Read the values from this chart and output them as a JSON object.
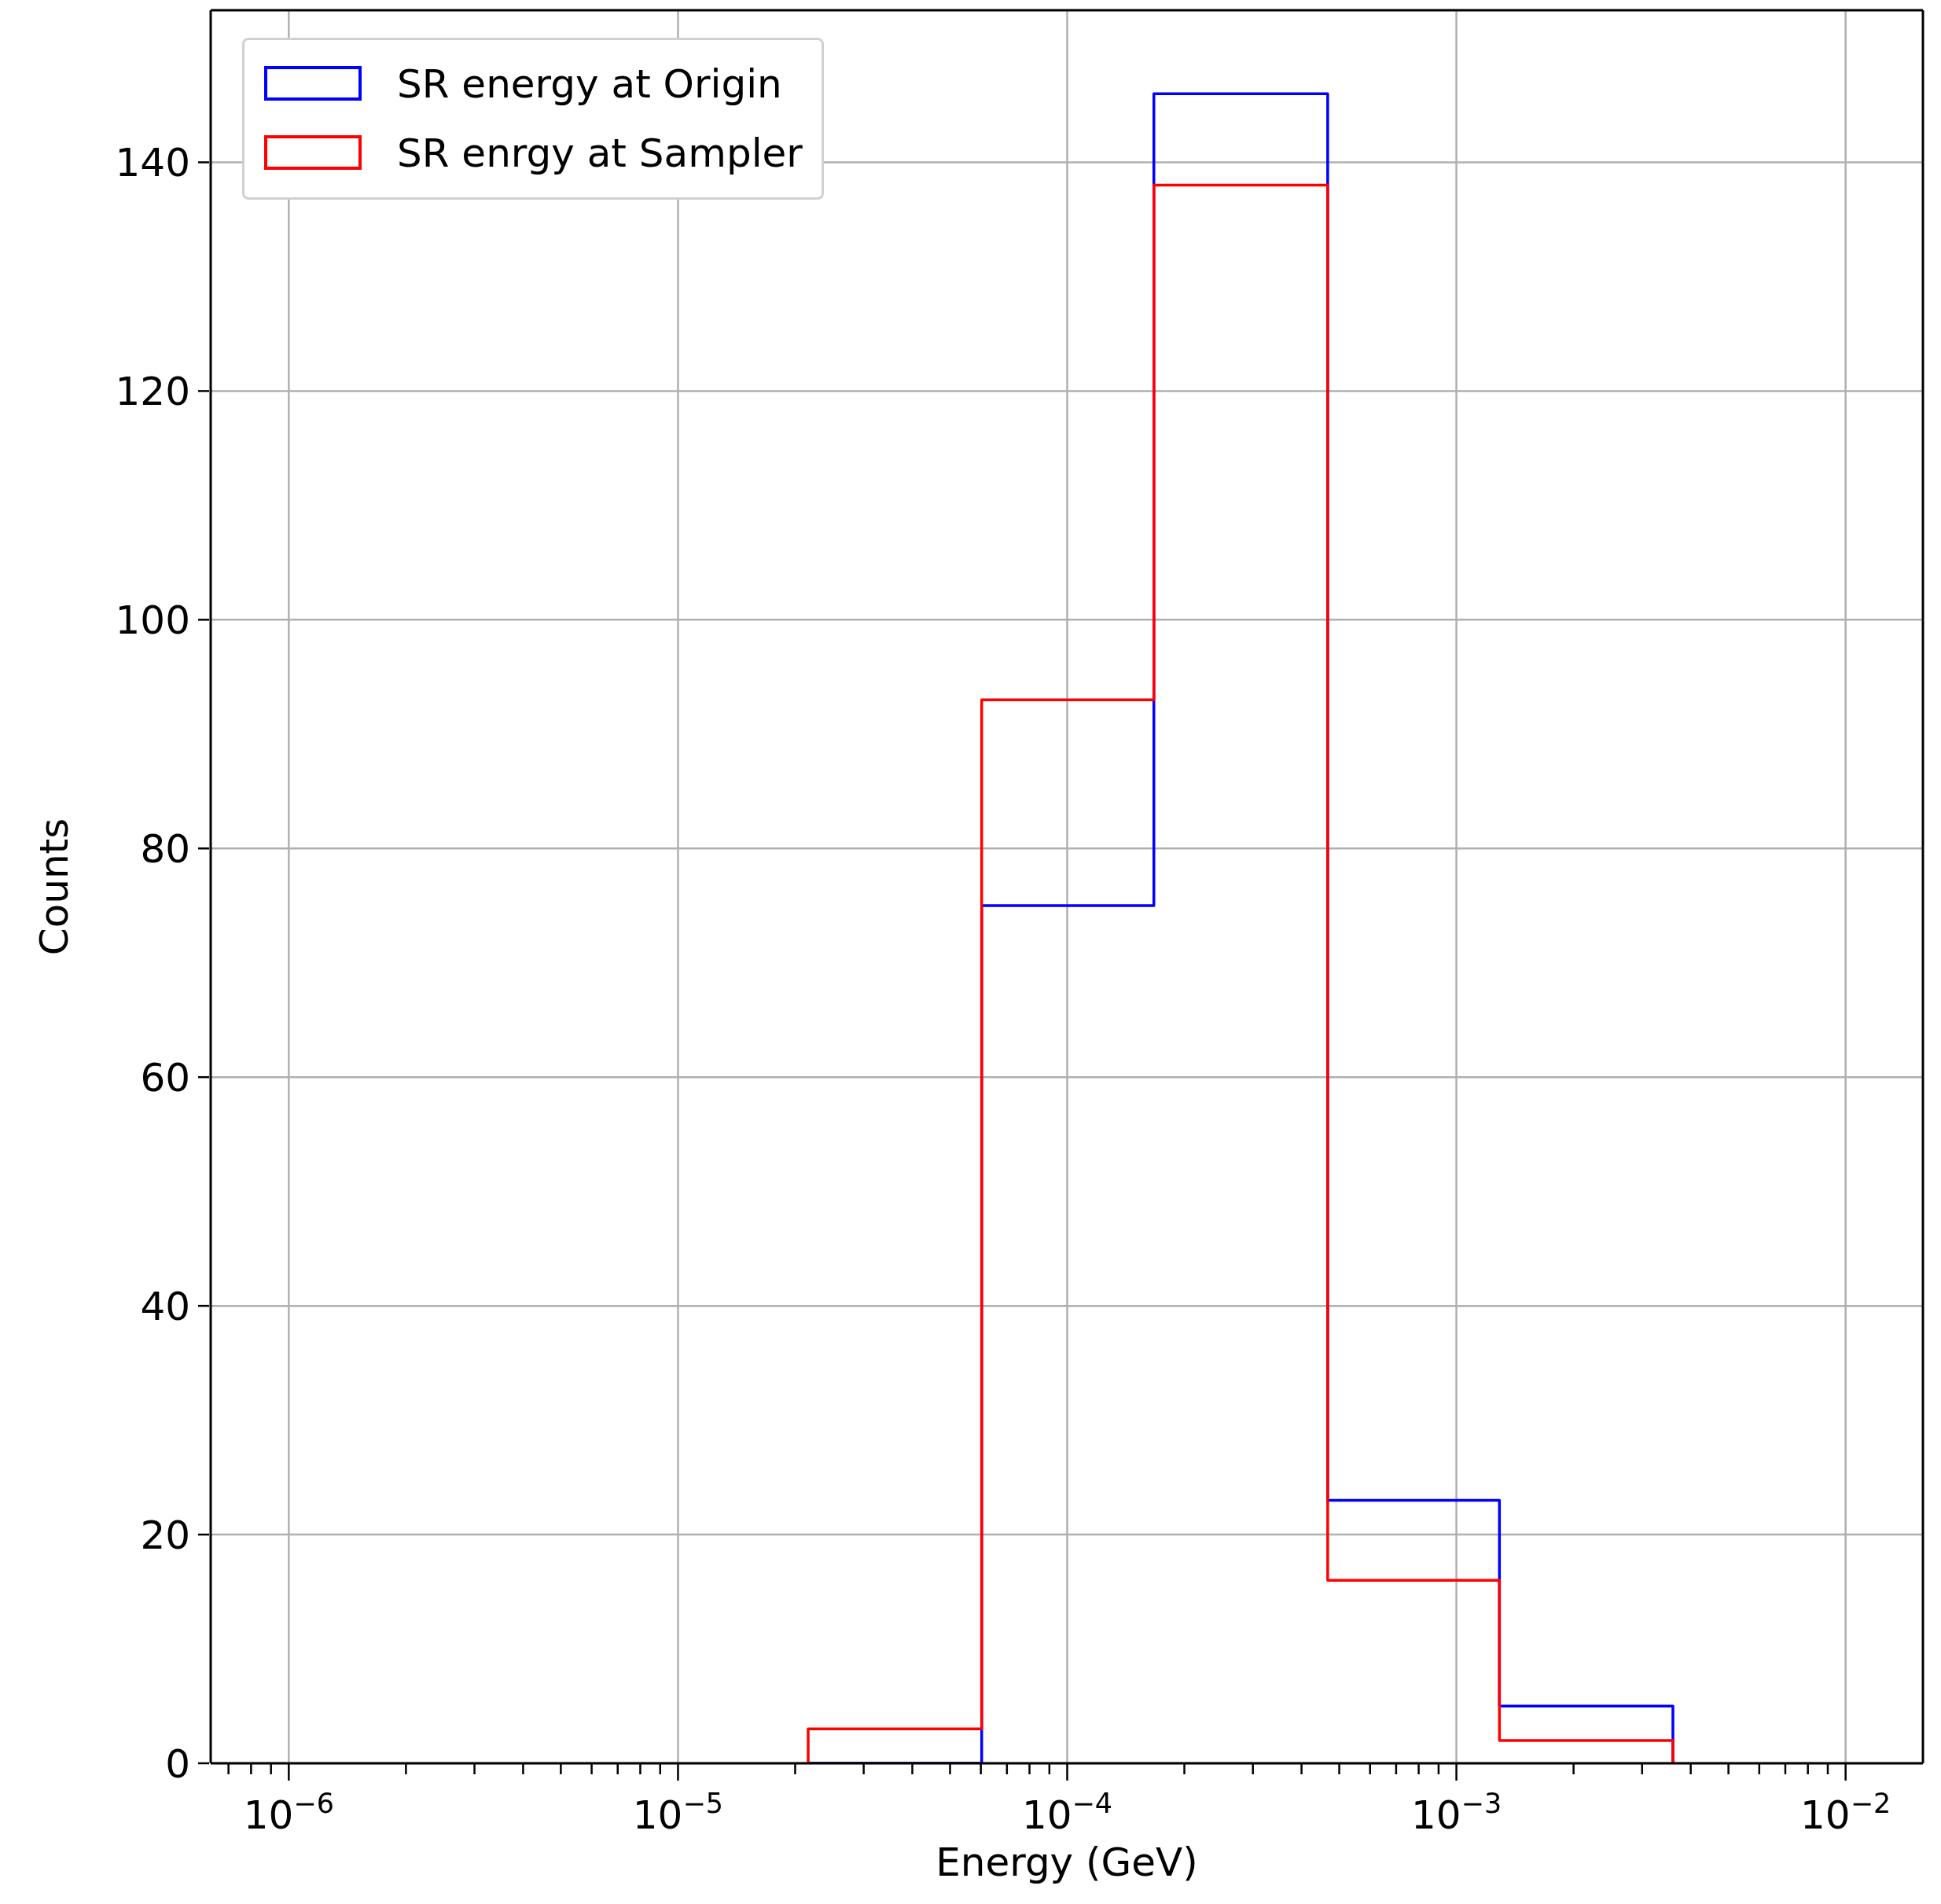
{
  "chart_data": {
    "type": "histogram",
    "xlabel": "Energy (GeV)",
    "ylabel": "Counts",
    "log": "x",
    "grid": true,
    "legend": "top left",
    "bins": [
      2.16e-05,
      6.03e-05,
      0.000167,
      0.000467,
      0.00129,
      0.0036
    ],
    "series": [
      {
        "name": "SR energy at Origin",
        "color": "#0000ff",
        "values": [
          0,
          75,
          146,
          23,
          5
        ]
      },
      {
        "name": "SR enrgy at Sampler",
        "color": "#ff0000",
        "values": [
          3,
          93,
          138,
          16,
          2
        ]
      }
    ],
    "xlim": [
      6.3e-07,
      0.0158
    ],
    "ylim": [
      0,
      153.3
    ],
    "xticks": [
      {
        "value": 7e-07,
        "label": null
      },
      {
        "value": 8e-07,
        "label": null
      },
      {
        "value": 9e-07,
        "label": null
      },
      {
        "value": 1e-06,
        "label": "10$^{−6}$"
      },
      {
        "value": 2e-06,
        "label": null
      },
      {
        "value": 3e-06,
        "label": null
      },
      {
        "value": 4e-06,
        "label": null
      },
      {
        "value": 5e-06,
        "label": null
      },
      {
        "value": 6e-06,
        "label": null
      },
      {
        "value": 7e-06,
        "label": null
      },
      {
        "value": 8e-06,
        "label": null
      },
      {
        "value": 9e-06,
        "label": null
      },
      {
        "value": 1e-05,
        "label": "10$^{−5}$"
      },
      {
        "value": 2e-05,
        "label": null
      },
      {
        "value": 3e-05,
        "label": null
      },
      {
        "value": 4e-05,
        "label": null
      },
      {
        "value": 5e-05,
        "label": null
      },
      {
        "value": 6e-05,
        "label": null
      },
      {
        "value": 7e-05,
        "label": null
      },
      {
        "value": 8e-05,
        "label": null
      },
      {
        "value": 9e-05,
        "label": null
      },
      {
        "value": 0.0001,
        "label": "10$^{−4}$"
      },
      {
        "value": 0.0002,
        "label": null
      },
      {
        "value": 0.0003,
        "label": null
      },
      {
        "value": 0.0004,
        "label": null
      },
      {
        "value": 0.0005,
        "label": null
      },
      {
        "value": 0.0006,
        "label": null
      },
      {
        "value": 0.0007,
        "label": null
      },
      {
        "value": 0.0008,
        "label": null
      },
      {
        "value": 0.0009,
        "label": null
      },
      {
        "value": 0.001,
        "label": "10$^{−3}$"
      },
      {
        "value": 0.002,
        "label": null
      },
      {
        "value": 0.003,
        "label": null
      },
      {
        "value": 0.004,
        "label": null
      },
      {
        "value": 0.005,
        "label": null
      },
      {
        "value": 0.006,
        "label": null
      },
      {
        "value": 0.007,
        "label": null
      },
      {
        "value": 0.008,
        "label": null
      },
      {
        "value": 0.009,
        "label": null
      },
      {
        "value": 0.01,
        "label": "10$^{−2}$"
      }
    ],
    "yticks": [
      0,
      20,
      40,
      60,
      80,
      100,
      120,
      140
    ]
  }
}
